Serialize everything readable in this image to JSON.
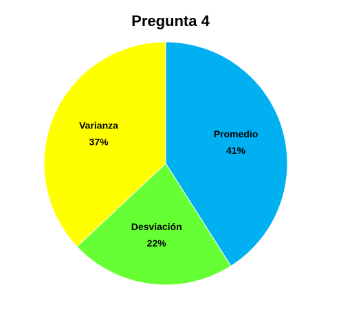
{
  "chart_data": {
    "type": "pie",
    "title": "Pregunta 4",
    "categories": [
      "Promedio",
      "Desviación",
      "Varianza"
    ],
    "values": [
      41,
      22,
      37
    ],
    "value_labels": [
      "41%",
      "22%",
      "37%"
    ],
    "colors": [
      "#00b0f0",
      "#66ff33",
      "#ffff00"
    ]
  }
}
